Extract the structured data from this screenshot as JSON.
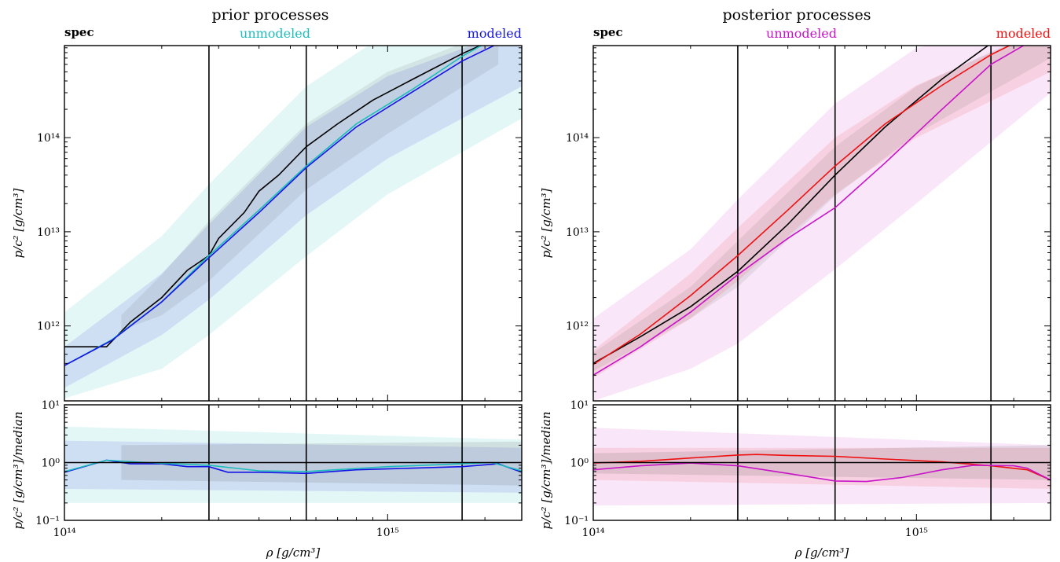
{
  "legend_words": {
    "spec": "spec",
    "unmodeled": "unmodeled",
    "modeled": "modeled"
  },
  "chart_data": [
    {
      "type": "line",
      "title": "prior processes",
      "xlabel": "ρ [g/cm³]",
      "ylabel": "p/c² [g/cm³]",
      "ratio_ylabel": "p/c² [g/cm³]/median",
      "x_scale": "log",
      "y_scale": "log",
      "xlim": [
        100000000000000.0,
        2600000000000000.0
      ],
      "ylim": [
        160000000000.0,
        950000000000000.0
      ],
      "ratio_ylim": [
        0.1,
        10
      ],
      "x_ticks": [
        {
          "value": 100000000000000.0,
          "label": "10¹⁴"
        },
        {
          "value": 1000000000000000.0,
          "label": "10¹⁵"
        }
      ],
      "y_ticks": [
        {
          "value": 1000000000000.0,
          "label": "10¹²"
        },
        {
          "value": 10000000000000.0,
          "label": "10¹³"
        },
        {
          "value": 100000000000000.0,
          "label": "10¹⁴"
        }
      ],
      "ratio_y_ticks": [
        {
          "value": 0.1,
          "label": "10⁻¹"
        },
        {
          "value": 1,
          "label": "10⁰"
        },
        {
          "value": 10,
          "label": "10¹"
        }
      ],
      "vertical_lines": [
        280000000000000.0,
        560000000000000.0,
        1700000000000000.0
      ],
      "legend_colors": {
        "spec": "#000000",
        "unmodeled": "#1fbcbc",
        "modeled": "#1414e6"
      },
      "series": [
        {
          "name": "spec",
          "color": "#000000",
          "x": [
            100000000000000.0,
            135000000000000.0,
            160000000000000.0,
            200000000000000.0,
            240000000000000.0,
            280000000000000.0,
            300000000000000.0,
            360000000000000.0,
            400000000000000.0,
            460000000000000.0,
            560000000000000.0,
            700000000000000.0,
            900000000000000.0,
            1200000000000000.0,
            1700000000000000.0,
            2000000000000000.0
          ],
          "y": [
            600000000000.0,
            600000000000.0,
            1100000000000.0,
            2000000000000.0,
            3900000000000.0,
            5600000000000.0,
            8500000000000.0,
            16000000000000.0,
            27000000000000.0,
            40000000000000.0,
            80000000000000.0,
            140000000000000.0,
            250000000000000.0,
            420000000000000.0,
            780000000000000.0,
            1000000000000000.0
          ]
        },
        {
          "name": "unmodeled",
          "color": "#1fbcbc",
          "x": [
            100000000000000.0,
            140000000000000.0,
            200000000000000.0,
            280000000000000.0,
            400000000000000.0,
            560000000000000.0,
            800000000000000.0,
            1200000000000000.0,
            1700000000000000.0,
            2000000000000000.0
          ],
          "y": [
            380000000000.0,
            710000000000.0,
            1800000000000.0,
            5600000000000.0,
            17000000000000.0,
            50000000000000.0,
            140000000000000.0,
            330000000000000.0,
            730000000000000.0,
            1000000000000000.0
          ]
        },
        {
          "name": "modeled",
          "color": "#1414e6",
          "x": [
            100000000000000.0,
            140000000000000.0,
            200000000000000.0,
            280000000000000.0,
            400000000000000.0,
            560000000000000.0,
            800000000000000.0,
            1200000000000000.0,
            1700000000000000.0,
            2200000000000000.0
          ],
          "y": [
            380000000000.0,
            700000000000.0,
            1800000000000.0,
            5300000000000.0,
            16000000000000.0,
            48000000000000.0,
            130000000000000.0,
            310000000000000.0,
            650000000000000.0,
            1000000000000000.0
          ]
        }
      ],
      "bands": [
        {
          "name": "unmodeled-90",
          "color": "#1fbcbc",
          "opacity": 0.12,
          "x": [
            100000000000000.0,
            200000000000000.0,
            280000000000000.0,
            560000000000000.0,
            1000000000000000.0,
            2600000000000000.0
          ],
          "lower": [
            170000000000.0,
            350000000000.0,
            800000000000.0,
            5500000000000.0,
            25000000000000.0,
            160000000000000.0
          ],
          "upper": [
            1400000000000.0,
            9000000000000.0,
            32000000000000.0,
            350000000000000.0,
            1300000000000000.0,
            2500000000000000.0
          ]
        },
        {
          "name": "modeled-90",
          "color": "#1414e6",
          "opacity": 0.1,
          "x": [
            100000000000000.0,
            200000000000000.0,
            280000000000000.0,
            560000000000000.0,
            1000000000000000.0,
            2600000000000000.0
          ],
          "lower": [
            220000000000.0,
            800000000000.0,
            1900000000000.0,
            15000000000000.0,
            60000000000000.0,
            350000000000000.0
          ],
          "upper": [
            600000000000.0,
            3600000000000.0,
            12000000000000.0,
            130000000000000.0,
            450000000000000.0,
            1500000000000000.0
          ]
        },
        {
          "name": "spec-90",
          "color": "#606060",
          "opacity": 0.12,
          "x": [
            150000000000000.0,
            200000000000000.0,
            280000000000000.0,
            560000000000000.0,
            1000000000000000.0,
            2200000000000000.0
          ],
          "lower": [
            900000000000.0,
            1300000000000.0,
            3000000000000.0,
            28000000000000.0,
            110000000000000.0,
            600000000000000.0
          ],
          "upper": [
            1300000000000.0,
            3500000000000.0,
            13000000000000.0,
            140000000000000.0,
            500000000000000.0,
            1400000000000000.0
          ]
        }
      ],
      "ratio_series": [
        {
          "name": "modeled",
          "color": "#1414e6",
          "x": [
            100000000000000.0,
            135000000000000.0,
            160000000000000.0,
            200000000000000.0,
            240000000000000.0,
            280000000000000.0,
            320000000000000.0,
            400000000000000.0,
            560000000000000.0,
            800000000000000.0,
            1200000000000000.0,
            1700000000000000.0,
            2200000000000000.0,
            2600000000000000.0
          ],
          "y": [
            0.68,
            1.1,
            0.95,
            0.95,
            0.85,
            0.85,
            0.68,
            0.68,
            0.65,
            0.75,
            0.8,
            0.85,
            0.95,
            0.68
          ]
        },
        {
          "name": "unmodeled",
          "color": "#1fbcbc",
          "x": [
            100000000000000.0,
            135000000000000.0,
            200000000000000.0,
            280000000000000.0,
            400000000000000.0,
            560000000000000.0,
            1000000000000000.0,
            1700000000000000.0,
            2100000000000000.0,
            2600000000000000.0
          ],
          "y": [
            0.7,
            1.1,
            0.97,
            0.9,
            0.72,
            0.7,
            0.85,
            0.95,
            1.0,
            0.72
          ]
        },
        {
          "name": "spec",
          "color": "#000000",
          "x": [
            100000000000000.0,
            2600000000000000.0
          ],
          "y": [
            1.0,
            1.0
          ]
        }
      ],
      "ratio_bands": [
        {
          "name": "unmodeled-90",
          "color": "#1fbcbc",
          "opacity": 0.12,
          "x": [
            100000000000000.0,
            2600000000000000.0
          ],
          "lower": [
            0.2,
            0.2
          ],
          "upper": [
            4.2,
            2.5
          ]
        },
        {
          "name": "modeled-90",
          "color": "#1414e6",
          "opacity": 0.1,
          "x": [
            100000000000000.0,
            2600000000000000.0
          ],
          "lower": [
            0.35,
            0.3
          ],
          "upper": [
            2.4,
            1.8
          ]
        },
        {
          "name": "spec-90",
          "color": "#606060",
          "opacity": 0.15,
          "x": [
            150000000000000.0,
            2600000000000000.0
          ],
          "lower": [
            0.5,
            0.4
          ],
          "upper": [
            2.0,
            2.3
          ]
        }
      ]
    },
    {
      "type": "line",
      "title": "posterior processes",
      "xlabel": "ρ [g/cm³]",
      "ylabel": "p/c² [g/cm³]",
      "ratio_ylabel": "p/c² [g/cm³]/median",
      "x_scale": "log",
      "y_scale": "log",
      "xlim": [
        100000000000000.0,
        2600000000000000.0
      ],
      "ylim": [
        160000000000.0,
        950000000000000.0
      ],
      "ratio_ylim": [
        0.1,
        10
      ],
      "x_ticks": [
        {
          "value": 100000000000000.0,
          "label": "10¹⁴"
        },
        {
          "value": 1000000000000000.0,
          "label": "10¹⁵"
        }
      ],
      "y_ticks": [
        {
          "value": 1000000000000.0,
          "label": "10¹²"
        },
        {
          "value": 10000000000000.0,
          "label": "10¹³"
        },
        {
          "value": 100000000000000.0,
          "label": "10¹⁴"
        }
      ],
      "ratio_y_ticks": [
        {
          "value": 0.1,
          "label": "10⁻¹"
        },
        {
          "value": 1,
          "label": "10⁰"
        },
        {
          "value": 10,
          "label": "10¹"
        }
      ],
      "vertical_lines": [
        280000000000000.0,
        560000000000000.0,
        1700000000000000.0
      ],
      "legend_colors": {
        "spec": "#000000",
        "unmodeled": "#c814c8",
        "modeled": "#ee1111"
      },
      "series": [
        {
          "name": "spec",
          "color": "#000000",
          "x": [
            100000000000000.0,
            140000000000000.0,
            200000000000000.0,
            280000000000000.0,
            400000000000000.0,
            560000000000000.0,
            800000000000000.0,
            1200000000000000.0,
            1700000000000000.0
          ],
          "y": [
            400000000000.0,
            770000000000.0,
            1600000000000.0,
            3800000000000.0,
            12000000000000.0,
            40000000000000.0,
            130000000000000.0,
            420000000000000.0,
            1000000000000000.0
          ]
        },
        {
          "name": "unmodeled",
          "color": "#c814c8",
          "x": [
            100000000000000.0,
            140000000000000.0,
            200000000000000.0,
            280000000000000.0,
            400000000000000.0,
            560000000000000.0,
            800000000000000.0,
            1200000000000000.0,
            1700000000000000.0,
            2200000000000000.0
          ],
          "y": [
            300000000000.0,
            600000000000.0,
            1400000000000.0,
            3500000000000.0,
            8500000000000.0,
            18000000000000.0,
            54000000000000.0,
            200000000000000.0,
            600000000000000.0,
            1000000000000000.0
          ]
        },
        {
          "name": "modeled",
          "color": "#ee1111",
          "x": [
            100000000000000.0,
            140000000000000.0,
            200000000000000.0,
            280000000000000.0,
            400000000000000.0,
            560000000000000.0,
            800000000000000.0,
            1200000000000000.0,
            1700000000000000.0,
            2000000000000000.0
          ],
          "y": [
            390000000000.0,
            820000000000.0,
            2100000000000.0,
            5600000000000.0,
            17000000000000.0,
            50000000000000.0,
            140000000000000.0,
            360000000000000.0,
            760000000000000.0,
            1000000000000000.0
          ]
        }
      ],
      "bands": [
        {
          "name": "unmodeled-90",
          "color": "#c814c8",
          "opacity": 0.1,
          "x": [
            100000000000000.0,
            200000000000000.0,
            280000000000000.0,
            560000000000000.0,
            1000000000000000.0,
            2600000000000000.0
          ],
          "lower": [
            160000000000.0,
            350000000000.0,
            650000000000.0,
            4000000000000.0,
            20000000000000.0,
            300000000000000.0
          ],
          "upper": [
            1200000000000.0,
            6500000000000.0,
            22000000000000.0,
            230000000000000.0,
            900000000000000.0,
            1600000000000000.0
          ]
        },
        {
          "name": "modeled-90",
          "color": "#ee1111",
          "opacity": 0.1,
          "x": [
            100000000000000.0,
            200000000000000.0,
            280000000000000.0,
            560000000000000.0,
            1000000000000000.0,
            2600000000000000.0
          ],
          "lower": [
            280000000000.0,
            1200000000000.0,
            3000000000000.0,
            25000000000000.0,
            100000000000000.0,
            500000000000000.0
          ],
          "upper": [
            550000000000.0,
            3600000000000.0,
            11000000000000.0,
            100000000000000.0,
            360000000000000.0,
            1500000000000000.0
          ]
        },
        {
          "name": "spec-90",
          "color": "#606060",
          "opacity": 0.12,
          "x": [
            100000000000000.0,
            200000000000000.0,
            280000000000000.0,
            560000000000000.0,
            1000000000000000.0,
            2600000000000000.0
          ],
          "lower": [
            330000000000.0,
            1200000000000.0,
            2600000000000.0,
            24000000000000.0,
            110000000000000.0,
            700000000000000.0
          ],
          "upper": [
            520000000000.0,
            2600000000000.0,
            8000000000000.0,
            80000000000000.0,
            350000000000000.0,
            1600000000000000.0
          ]
        }
      ],
      "ratio_series": [
        {
          "name": "modeled",
          "color": "#ee1111",
          "x": [
            100000000000000.0,
            140000000000000.0,
            200000000000000.0,
            280000000000000.0,
            320000000000000.0,
            400000000000000.0,
            560000000000000.0,
            800000000000000.0,
            1200000000000000.0,
            1700000000000000.0,
            2200000000000000.0,
            2600000000000000.0
          ],
          "y": [
            0.98,
            1.05,
            1.2,
            1.35,
            1.38,
            1.33,
            1.28,
            1.15,
            1.03,
            0.88,
            0.75,
            0.5
          ]
        },
        {
          "name": "unmodeled",
          "color": "#c814c8",
          "x": [
            100000000000000.0,
            140000000000000.0,
            200000000000000.0,
            280000000000000.0,
            400000000000000.0,
            560000000000000.0,
            700000000000000.0,
            900000000000000.0,
            1200000000000000.0,
            1500000000000000.0,
            2000000000000000.0,
            2200000000000000.0,
            2600000000000000.0
          ],
          "y": [
            0.75,
            0.88,
            0.98,
            0.88,
            0.65,
            0.48,
            0.47,
            0.55,
            0.75,
            0.9,
            0.88,
            0.8,
            0.5
          ]
        },
        {
          "name": "spec",
          "color": "#000000",
          "x": [
            100000000000000.0,
            2600000000000000.0
          ],
          "y": [
            1.0,
            1.0
          ]
        }
      ],
      "ratio_bands": [
        {
          "name": "unmodeled-90",
          "color": "#c814c8",
          "opacity": 0.1,
          "x": [
            100000000000000.0,
            2600000000000000.0
          ],
          "lower": [
            0.18,
            0.2
          ],
          "upper": [
            4.0,
            2.0
          ]
        },
        {
          "name": "modeled-90",
          "color": "#ee1111",
          "opacity": 0.1,
          "x": [
            100000000000000.0,
            2600000000000000.0
          ],
          "lower": [
            0.5,
            0.35
          ],
          "upper": [
            1.8,
            1.8
          ]
        },
        {
          "name": "spec-90",
          "color": "#606060",
          "opacity": 0.15,
          "x": [
            100000000000000.0,
            2600000000000000.0
          ],
          "lower": [
            0.65,
            0.5
          ],
          "upper": [
            1.45,
            2.0
          ]
        }
      ]
    }
  ]
}
